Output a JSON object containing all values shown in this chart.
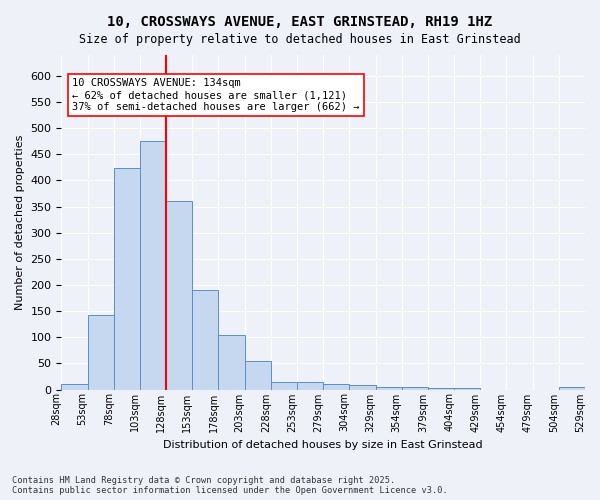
{
  "title": "10, CROSSWAYS AVENUE, EAST GRINSTEAD, RH19 1HZ",
  "subtitle": "Size of property relative to detached houses in East Grinstead",
  "xlabel": "Distribution of detached houses by size in East Grinstead",
  "ylabel": "Number of detached properties",
  "bar_values": [
    10,
    143,
    424,
    476,
    360,
    190,
    105,
    54,
    15,
    15,
    11,
    9,
    5,
    4,
    3,
    3,
    0,
    0,
    0,
    5
  ],
  "bar_color": "#c5d8f0",
  "bar_edge_color": "#5b8fc9",
  "vline_x": 3.5,
  "vline_color": "red",
  "annotation_text": "10 CROSSWAYS AVENUE: 134sqm\n← 62% of detached houses are smaller (1,121)\n37% of semi-detached houses are larger (662) →",
  "annotation_box_color": "white",
  "annotation_box_edge": "red",
  "ylim": [
    0,
    640
  ],
  "yticks": [
    0,
    50,
    100,
    150,
    200,
    250,
    300,
    350,
    400,
    450,
    500,
    550,
    600
  ],
  "xtick_labels": [
    "28sqm",
    "53sqm",
    "78sqm",
    "103sqm",
    "128sqm",
    "153sqm",
    "178sqm",
    "203sqm",
    "228sqm",
    "253sqm",
    "279sqm",
    "304sqm",
    "329sqm",
    "354sqm",
    "379sqm",
    "404sqm",
    "429sqm",
    "454sqm",
    "479sqm",
    "504sqm",
    "529sqm"
  ],
  "footnote": "Contains HM Land Registry data © Crown copyright and database right 2025.\nContains public sector information licensed under the Open Government Licence v3.0.",
  "background_color": "#eef2f8",
  "plot_background": "#eef2f8"
}
